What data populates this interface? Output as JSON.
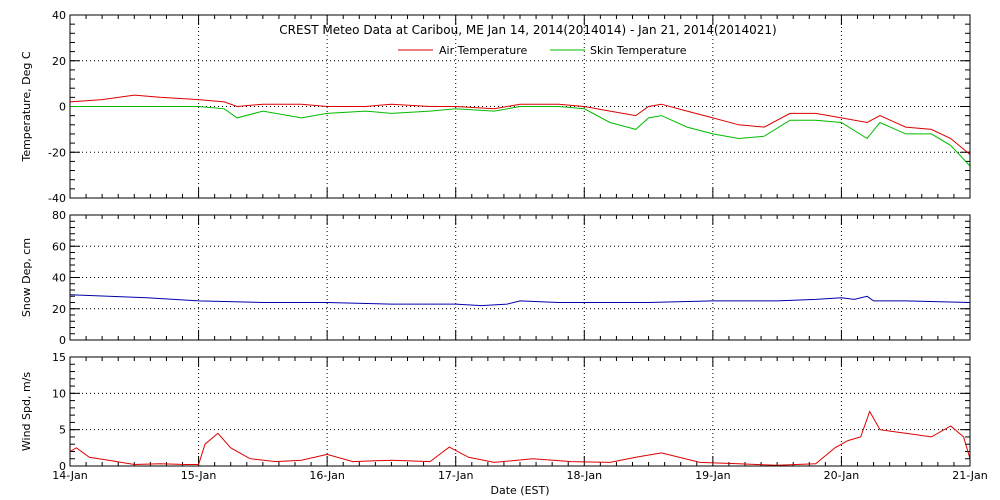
{
  "figure": {
    "title": "CREST Meteo Data at Caribou, ME   Jan 14, 2014(2014014) - Jan 21, 2014(2014021)",
    "xlabel": "Date (EST)"
  },
  "chart_data": [
    {
      "type": "line",
      "ylabel": "Temperature, Deg C",
      "xlim": [
        0,
        7
      ],
      "ylim": [
        -40,
        40
      ],
      "yticks": [
        -40,
        -20,
        0,
        20,
        40
      ],
      "grid": true,
      "legend": "top-center",
      "x": [
        0,
        0.25,
        0.5,
        0.7,
        1.0,
        1.2,
        1.3,
        1.5,
        1.8,
        2.0,
        2.3,
        2.5,
        2.8,
        3.0,
        3.3,
        3.5,
        3.8,
        4.0,
        4.2,
        4.4,
        4.5,
        4.6,
        4.8,
        5.0,
        5.2,
        5.4,
        5.6,
        5.8,
        6.0,
        6.2,
        6.3,
        6.5,
        6.7,
        6.85,
        7.0
      ],
      "series": [
        {
          "name": "Air Temperature",
          "color": "#dd0000",
          "values": [
            2,
            3,
            5,
            4,
            3,
            2,
            0,
            1,
            1,
            0,
            0,
            1,
            0,
            0,
            -1,
            1,
            1,
            0,
            -2,
            -4,
            0,
            1,
            -2,
            -5,
            -8,
            -9,
            -3,
            -3,
            -5,
            -7,
            -4,
            -9,
            -10,
            -14,
            -21
          ]
        },
        {
          "name": "Skin Temperature",
          "color": "#00bb00",
          "values": [
            0,
            0,
            0,
            0,
            0,
            -1,
            -5,
            -2,
            -5,
            -3,
            -2,
            -3,
            -2,
            -1,
            -2,
            0,
            0,
            -1,
            -7,
            -10,
            -5,
            -4,
            -9,
            -12,
            -14,
            -13,
            -6,
            -6,
            -7,
            -14,
            -7,
            -12,
            -12,
            -17,
            -26
          ]
        }
      ]
    },
    {
      "type": "line",
      "ylabel": "Snow Dep, cm",
      "xlim": [
        0,
        7
      ],
      "ylim": [
        0,
        80
      ],
      "yticks": [
        0,
        20,
        40,
        60,
        80
      ],
      "grid": true,
      "x": [
        0,
        0.3,
        0.6,
        1.0,
        1.5,
        2.0,
        2.5,
        3.0,
        3.2,
        3.4,
        3.5,
        3.8,
        4.0,
        4.5,
        5.0,
        5.5,
        5.8,
        6.0,
        6.1,
        6.2,
        6.25,
        6.3,
        6.5,
        7.0
      ],
      "series": [
        {
          "name": "",
          "color": "#0000aa",
          "values": [
            29,
            28,
            27,
            25,
            24,
            24,
            23,
            23,
            22,
            23,
            25,
            24,
            24,
            24,
            25,
            25,
            26,
            27,
            26,
            28,
            25,
            25,
            25,
            24
          ]
        }
      ]
    },
    {
      "type": "line",
      "ylabel": "Wind Spd, m/s",
      "xlim": [
        0,
        7
      ],
      "ylim": [
        0,
        15
      ],
      "yticks": [
        0,
        5,
        10,
        15
      ],
      "grid": true,
      "x": [
        0,
        0.05,
        0.15,
        0.3,
        0.5,
        0.7,
        0.9,
        1.0,
        1.05,
        1.15,
        1.25,
        1.4,
        1.6,
        1.8,
        2.0,
        2.2,
        2.5,
        2.8,
        2.95,
        3.1,
        3.3,
        3.6,
        3.9,
        4.2,
        4.4,
        4.6,
        4.9,
        5.2,
        5.5,
        5.8,
        5.95,
        6.05,
        6.15,
        6.22,
        6.3,
        6.5,
        6.7,
        6.85,
        6.95,
        7.0
      ],
      "series": [
        {
          "name": "",
          "color": "#dd0000",
          "values": [
            2,
            2.5,
            1.2,
            0.8,
            0.2,
            0.3,
            0.2,
            0.2,
            3,
            4.5,
            2.5,
            1,
            0.6,
            0.8,
            1.6,
            0.6,
            0.8,
            0.6,
            2.6,
            1.2,
            0.5,
            1,
            0.6,
            0.5,
            1.2,
            1.8,
            0.5,
            0.3,
            0.1,
            0.3,
            2.5,
            3.5,
            4,
            7.5,
            5,
            4.5,
            4,
            5.5,
            4,
            1
          ]
        }
      ]
    }
  ],
  "x_axis": {
    "tick_labels": [
      "14-Jan",
      "15-Jan",
      "16-Jan",
      "17-Jan",
      "18-Jan",
      "19-Jan",
      "20-Jan",
      "21-Jan"
    ]
  }
}
